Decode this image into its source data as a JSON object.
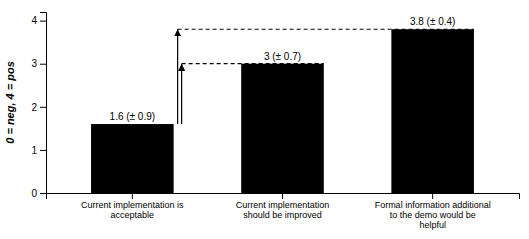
{
  "chart_data": {
    "type": "bar",
    "categories": [
      "Current implementation is\nacceptable",
      "Current implementation\nshould be improved",
      "Formal information additional\nto the demo would be\nhelpful"
    ],
    "values": [
      1.6,
      3.0,
      3.8
    ],
    "data_labels": true,
    "value_labels": [
      "1.6 (± 0.9)",
      "3 (± 0.7)",
      "3.8 (± 0.4)"
    ],
    "color": "#000000",
    "ylabel": "0 = neg, 4 = pos",
    "ylim": [
      0,
      4.2
    ],
    "yticks": [
      0,
      1,
      2,
      3,
      4
    ],
    "reference_lines": [
      3.8,
      3.0
    ],
    "grid": false
  }
}
